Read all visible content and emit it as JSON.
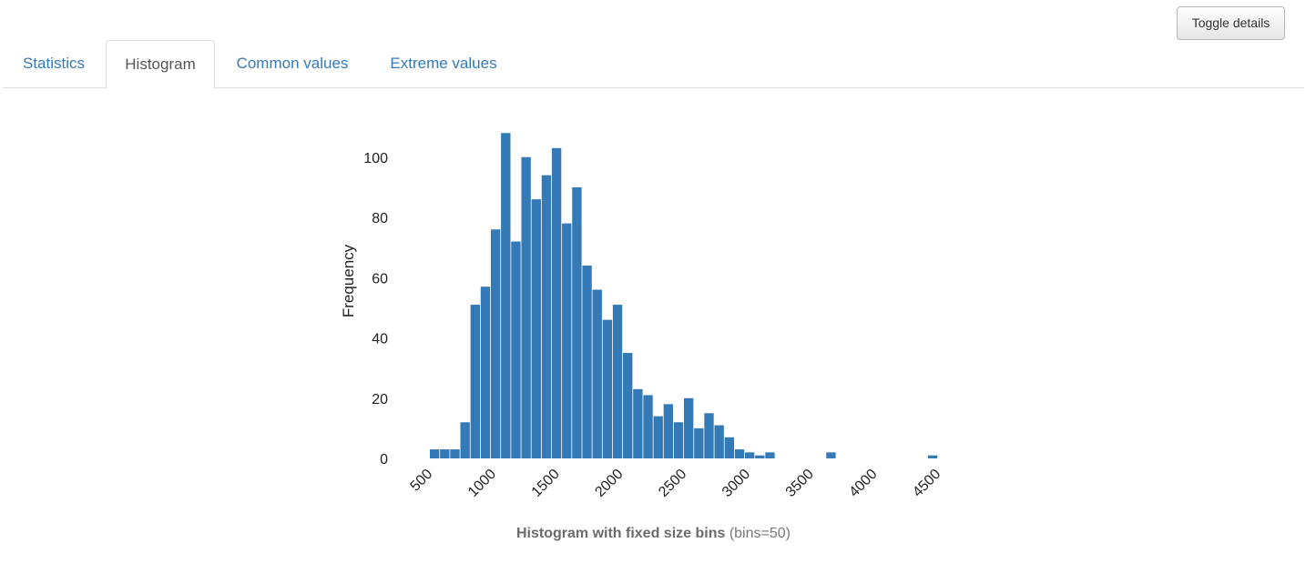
{
  "header": {
    "toggle_label": "Toggle details"
  },
  "tabs": [
    {
      "label": "Statistics",
      "active": false
    },
    {
      "label": "Histogram",
      "active": true
    },
    {
      "label": "Common values",
      "active": false
    },
    {
      "label": "Extreme values",
      "active": false
    }
  ],
  "caption": {
    "title": "Histogram with fixed size bins",
    "subtitle": "(bins=50)"
  },
  "colors": {
    "bar": "#337ab7",
    "link": "#337ab7",
    "active_tab_text": "#555555"
  },
  "chart_data": {
    "type": "bar",
    "title": "Histogram with fixed size bins",
    "xlabel": "",
    "ylabel": "Frequency",
    "xlim": [
      400,
      4500
    ],
    "ylim": [
      0,
      112
    ],
    "xticks": [
      500,
      1000,
      1500,
      2000,
      2500,
      3000,
      3500,
      4000,
      4500
    ],
    "yticks": [
      0,
      20,
      40,
      60,
      80,
      100
    ],
    "grid": false,
    "bin_start": 475,
    "bin_width": 80,
    "values": [
      3,
      3,
      3,
      12,
      51,
      57,
      76,
      108,
      72,
      100,
      86,
      94,
      103,
      78,
      90,
      64,
      56,
      46,
      51,
      35,
      23,
      21,
      14,
      18,
      12,
      20,
      10,
      15,
      11,
      7,
      3,
      2,
      1,
      2,
      0,
      0,
      0,
      0,
      0,
      2,
      0,
      0,
      0,
      0,
      0,
      0,
      0,
      0,
      0,
      1
    ]
  }
}
